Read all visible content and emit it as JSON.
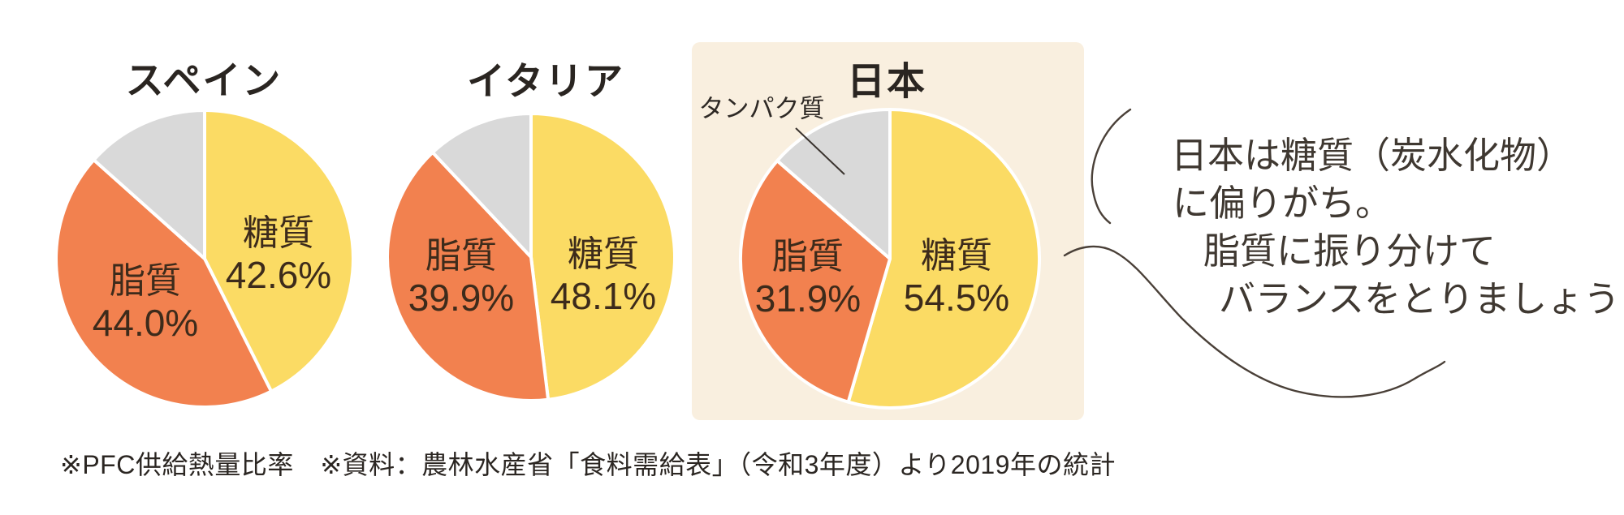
{
  "chart_data": [
    {
      "type": "pie",
      "id": "spain",
      "title": "スペイン",
      "start_angle": "top",
      "direction": "clockwise",
      "slices": [
        {
          "key": "carb",
          "label": "糖質",
          "value": 42.6,
          "pct_label": "42.6%",
          "color": "#FBDB64",
          "label_shown": true
        },
        {
          "key": "fat",
          "label": "脂質",
          "value": 44.0,
          "pct_label": "44.0%",
          "color": "#F2814F",
          "label_shown": true
        },
        {
          "key": "protein",
          "label": "タンパク質",
          "value": 13.4,
          "pct_label": "",
          "color": "#D9D9D9",
          "label_shown": false
        }
      ]
    },
    {
      "type": "pie",
      "id": "italy",
      "title": "イタリア",
      "start_angle": "top",
      "direction": "clockwise",
      "slices": [
        {
          "key": "carb",
          "label": "糖質",
          "value": 48.1,
          "pct_label": "48.1%",
          "color": "#FBDB64",
          "label_shown": true
        },
        {
          "key": "fat",
          "label": "脂質",
          "value": 39.9,
          "pct_label": "39.9%",
          "color": "#F2814F",
          "label_shown": true
        },
        {
          "key": "protein",
          "label": "タンパク質",
          "value": 12.0,
          "pct_label": "",
          "color": "#D9D9D9",
          "label_shown": false
        }
      ]
    },
    {
      "type": "pie",
      "id": "japan",
      "title": "日本",
      "start_angle": "top",
      "direction": "clockwise",
      "slices": [
        {
          "key": "carb",
          "label": "糖質",
          "value": 54.5,
          "pct_label": "54.5%",
          "color": "#FBDB64",
          "label_shown": true
        },
        {
          "key": "fat",
          "label": "脂質",
          "value": 31.9,
          "pct_label": "31.9%",
          "color": "#F2814F",
          "label_shown": true
        },
        {
          "key": "protein",
          "label": "タンパク質",
          "value": 13.6,
          "pct_label": "",
          "color": "#D9D9D9",
          "label_shown": false
        }
      ]
    }
  ],
  "japan_callout": {
    "label": "タンパク質"
  },
  "bubble": {
    "lines": [
      "日本は糖質（炭水化物）",
      "に偏りがち。",
      "脂質に振り分けて",
      "バランスをとりましょう！"
    ]
  },
  "footnote": {
    "text": "※PFC供給熱量比率　※資料：農林水産省「食料需給表」（令和3年度）より2019年の統計"
  },
  "colors": {
    "carb": "#FBDB64",
    "fat": "#F2814F",
    "protein": "#D9D9D9",
    "japan_box": "#F9EFDF",
    "slice_divider": "#FFFFFF",
    "label_text": "#3D2B1B",
    "title_text": "#2A2521",
    "bubble_stroke": "#4A4038"
  }
}
